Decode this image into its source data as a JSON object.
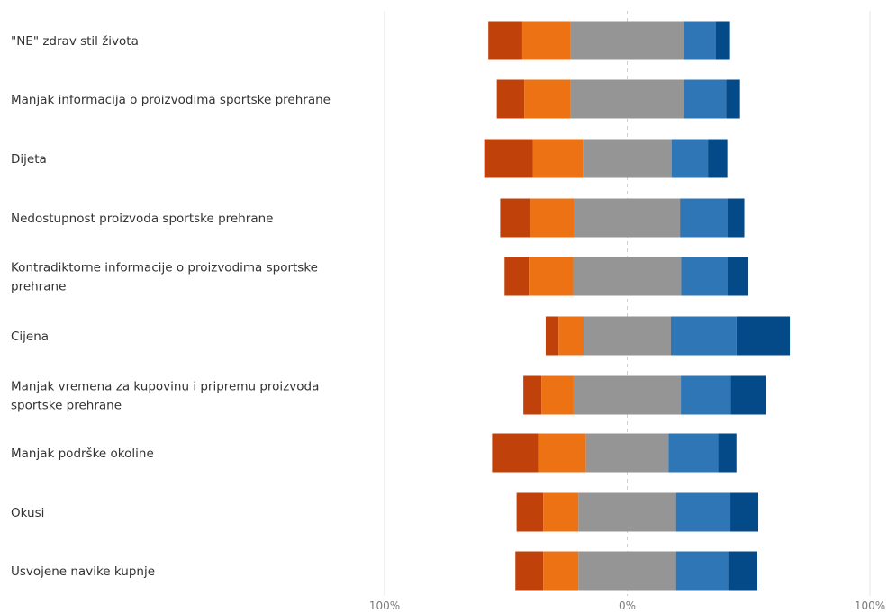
{
  "chart_data": {
    "type": "bar",
    "subtype": "diverging-stacked-likert",
    "title": "",
    "xlabel": "",
    "ylabel": "",
    "xlim": [
      -100,
      100
    ],
    "x_ticks": [
      {
        "value": -100,
        "label": "100%"
      },
      {
        "value": 0,
        "label": "0%"
      },
      {
        "value": 100,
        "label": "100%"
      }
    ],
    "center_line": "dashed",
    "grid": false,
    "legend": "none",
    "categories": [
      "\"NE\" zdrav stil života",
      "Manjak informacija o proizvodima sportske prehrane",
      "Dijeta",
      "Nedostupnost proizvoda sportske prehrane",
      "Kontradiktorne informacije o proizvodima sportske prehrane",
      "Cijena",
      "Manjak vremena za kupovinu i pripremu proizvoda sportske prehrane",
      "Manjak podrške okoline",
      "Okusi",
      "Usvojene navike kupnje"
    ],
    "series": [
      {
        "color": "#c0410a",
        "side": "negative",
        "values": [
          14.0,
          11.3,
          20.0,
          12.3,
          10.0,
          5.3,
          7.4,
          19.0,
          11.0,
          11.5
        ]
      },
      {
        "color": "#ed7213",
        "side": "negative",
        "values": [
          20.0,
          19.2,
          20.7,
          18.3,
          18.3,
          10.3,
          13.3,
          19.7,
          14.5,
          14.5
        ]
      },
      {
        "color": "#959595",
        "side": "neutral",
        "values": [
          46.5,
          46.5,
          36.5,
          43.5,
          44.5,
          36.0,
          44.2,
          34.0,
          40.2,
          40.2
        ]
      },
      {
        "color": "#2e76b6",
        "side": "positive",
        "values": [
          13.3,
          17.5,
          15.0,
          19.5,
          19.0,
          27.0,
          20.5,
          20.5,
          22.4,
          21.5
        ]
      },
      {
        "color": "#044a88",
        "side": "positive",
        "values": [
          5.8,
          5.7,
          8.0,
          7.0,
          8.5,
          22.0,
          14.5,
          7.5,
          11.5,
          12.0
        ]
      }
    ]
  }
}
